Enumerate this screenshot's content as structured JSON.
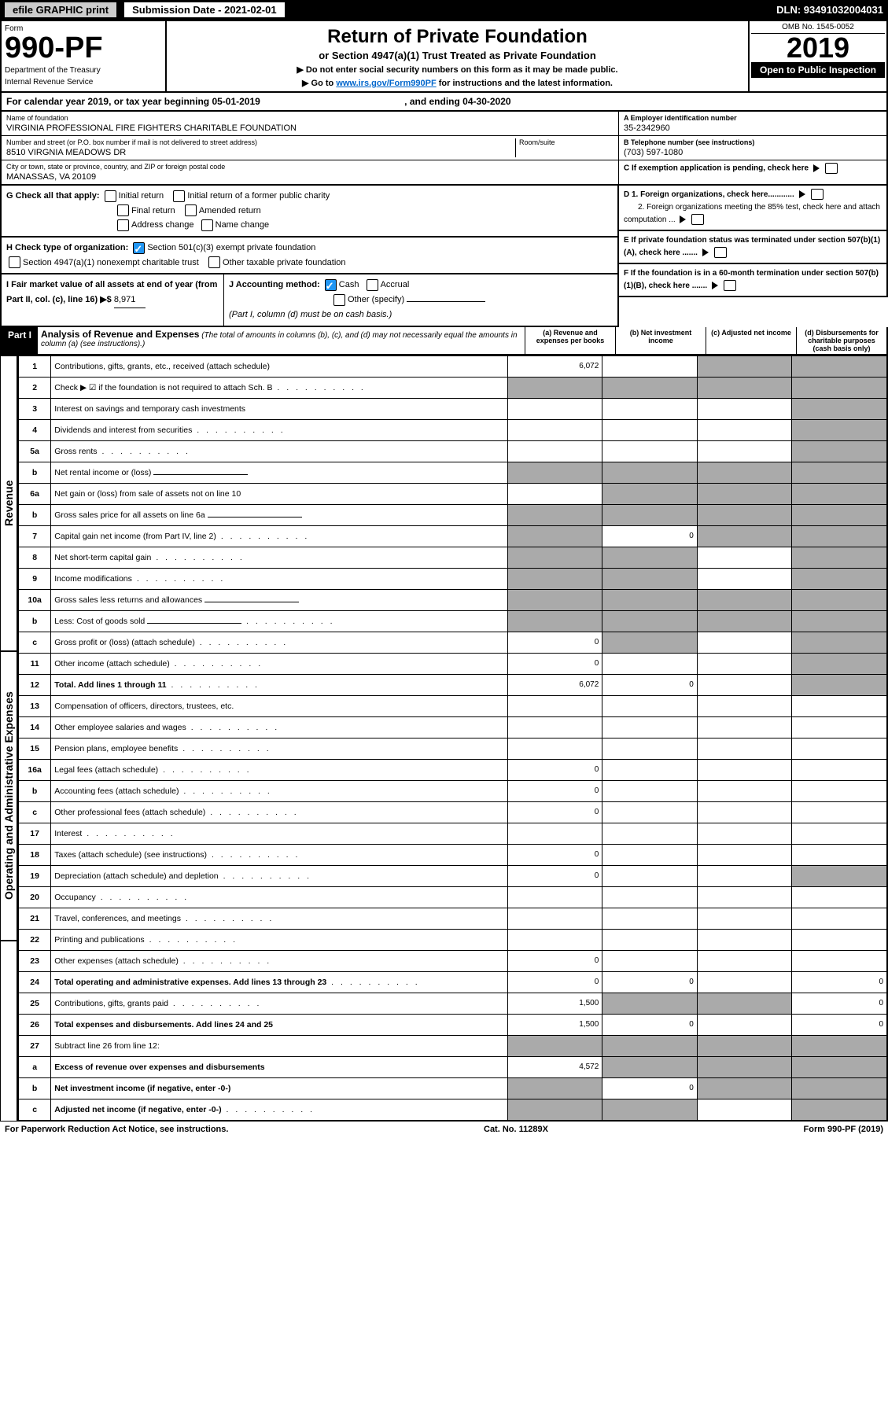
{
  "topbar": {
    "efile": "efile GRAPHIC print",
    "submission": "Submission Date - 2021-02-01",
    "dln": "DLN: 93491032004031"
  },
  "header": {
    "form_word": "Form",
    "form_no": "990-PF",
    "dept": "Department of the Treasury",
    "irs": "Internal Revenue Service",
    "title": "Return of Private Foundation",
    "subtitle": "or Section 4947(a)(1) Trust Treated as Private Foundation",
    "note1": "▶ Do not enter social security numbers on this form as it may be made public.",
    "note2": "▶ Go to ",
    "link": "www.irs.gov/Form990PF",
    "note3": " for instructions and the latest information.",
    "omb": "OMB No. 1545-0052",
    "year": "2019",
    "open": "Open to Public Inspection"
  },
  "calyear": {
    "text": "For calendar year 2019, or tax year beginning 05-01-2019",
    "mid": ", and ending 04-30-2020"
  },
  "foundation": {
    "name_label": "Name of foundation",
    "name": "VIRGINIA PROFESSIONAL FIRE FIGHTERS CHARITABLE FOUNDATION",
    "addr_label": "Number and street (or P.O. box number if mail is not delivered to street address)",
    "addr": "8510 VIRGNIA MEADOWS DR",
    "room": "Room/suite",
    "city_label": "City or town, state or province, country, and ZIP or foreign postal code",
    "city": "MANASSAS, VA  20109",
    "ein_label": "A Employer identification number",
    "ein": "35-2342960",
    "tel_label": "B Telephone number (see instructions)",
    "tel": "(703) 597-1080",
    "c": "C If exemption application is pending, check here",
    "d1": "D 1. Foreign organizations, check here............",
    "d2": "2. Foreign organizations meeting the 85% test, check here and attach computation ...",
    "e": "E  If private foundation status was terminated under section 507(b)(1)(A), check here .......",
    "f": "F  If the foundation is in a 60-month termination under section 507(b)(1)(B), check here ......."
  },
  "g": {
    "label": "G Check all that apply:",
    "opts": [
      "Initial return",
      "Initial return of a former public charity",
      "Final return",
      "Amended return",
      "Address change",
      "Name change"
    ]
  },
  "h": {
    "label": "H Check type of organization:",
    "opts": [
      "Section 501(c)(3) exempt private foundation",
      "Section 4947(a)(1) nonexempt charitable trust",
      "Other taxable private foundation"
    ]
  },
  "i": {
    "label": "I Fair market value of all assets at end of year (from Part II, col. (c), line 16) ▶$",
    "val": "8,971"
  },
  "j": {
    "label": "J Accounting method:",
    "opts": [
      "Cash",
      "Accrual"
    ],
    "other": "Other (specify)",
    "note": "(Part I, column (d) must be on cash basis.)"
  },
  "part1": {
    "label": "Part I",
    "title": "Analysis of Revenue and Expenses",
    "note": "(The total of amounts in columns (b), (c), and (d) may not necessarily equal the amounts in column (a) (see instructions).)",
    "cols": [
      "(a)   Revenue and expenses per books",
      "(b)  Net investment income",
      "(c)  Adjusted net income",
      "(d)  Disbursements for charitable purposes (cash basis only)"
    ]
  },
  "rows": [
    {
      "n": "1",
      "d": "Contributions, gifts, grants, etc., received (attach schedule)",
      "a": "6,072",
      "sh": [
        0,
        0,
        1,
        1
      ]
    },
    {
      "n": "2",
      "d": "Check ▶ ☑ if the foundation is not required to attach Sch. B",
      "dots": 1,
      "sh": [
        1,
        1,
        1,
        1
      ]
    },
    {
      "n": "3",
      "d": "Interest on savings and temporary cash investments",
      "sh": [
        0,
        0,
        0,
        1
      ]
    },
    {
      "n": "4",
      "d": "Dividends and interest from securities",
      "dots": 1,
      "sh": [
        0,
        0,
        0,
        1
      ]
    },
    {
      "n": "5a",
      "d": "Gross rents",
      "dots": 1,
      "sh": [
        0,
        0,
        0,
        1
      ]
    },
    {
      "n": "b",
      "d": "Net rental income or (loss)",
      "line": 1,
      "sh": [
        1,
        1,
        1,
        1
      ]
    },
    {
      "n": "6a",
      "d": "Net gain or (loss) from sale of assets not on line 10",
      "sh": [
        0,
        1,
        1,
        1
      ]
    },
    {
      "n": "b",
      "d": "Gross sales price for all assets on line 6a",
      "line": 1,
      "sh": [
        1,
        1,
        1,
        1
      ]
    },
    {
      "n": "7",
      "d": "Capital gain net income (from Part IV, line 2)",
      "dots": 1,
      "b": "0",
      "sh": [
        1,
        0,
        1,
        1
      ]
    },
    {
      "n": "8",
      "d": "Net short-term capital gain",
      "dots": 1,
      "sh": [
        1,
        1,
        0,
        1
      ]
    },
    {
      "n": "9",
      "d": "Income modifications",
      "dots": 1,
      "sh": [
        1,
        1,
        0,
        1
      ]
    },
    {
      "n": "10a",
      "d": "Gross sales less returns and allowances",
      "line": 1,
      "sh": [
        1,
        1,
        1,
        1
      ]
    },
    {
      "n": "b",
      "d": "Less: Cost of goods sold",
      "dots": 1,
      "line": 1,
      "sh": [
        1,
        1,
        1,
        1
      ]
    },
    {
      "n": "c",
      "d": "Gross profit or (loss) (attach schedule)",
      "dots": 1,
      "a": "0",
      "sh": [
        0,
        1,
        0,
        1
      ]
    },
    {
      "n": "11",
      "d": "Other income (attach schedule)",
      "dots": 1,
      "a": "0",
      "sh": [
        0,
        0,
        0,
        1
      ]
    },
    {
      "n": "12",
      "d": "Total. Add lines 1 through 11",
      "dots": 1,
      "bold": 1,
      "a": "6,072",
      "b": "0",
      "sh": [
        0,
        0,
        0,
        1
      ]
    },
    {
      "n": "13",
      "d": "Compensation of officers, directors, trustees, etc.",
      "sh": [
        0,
        0,
        0,
        0
      ]
    },
    {
      "n": "14",
      "d": "Other employee salaries and wages",
      "dots": 1,
      "sh": [
        0,
        0,
        0,
        0
      ]
    },
    {
      "n": "15",
      "d": "Pension plans, employee benefits",
      "dots": 1,
      "sh": [
        0,
        0,
        0,
        0
      ]
    },
    {
      "n": "16a",
      "d": "Legal fees (attach schedule)",
      "dots": 1,
      "a": "0",
      "sh": [
        0,
        0,
        0,
        0
      ]
    },
    {
      "n": "b",
      "d": "Accounting fees (attach schedule)",
      "dots": 1,
      "a": "0",
      "sh": [
        0,
        0,
        0,
        0
      ]
    },
    {
      "n": "c",
      "d": "Other professional fees (attach schedule)",
      "dots": 1,
      "a": "0",
      "sh": [
        0,
        0,
        0,
        0
      ]
    },
    {
      "n": "17",
      "d": "Interest",
      "dots": 1,
      "sh": [
        0,
        0,
        0,
        0
      ]
    },
    {
      "n": "18",
      "d": "Taxes (attach schedule) (see instructions)",
      "dots": 1,
      "a": "0",
      "sh": [
        0,
        0,
        0,
        0
      ]
    },
    {
      "n": "19",
      "d": "Depreciation (attach schedule) and depletion",
      "dots": 1,
      "a": "0",
      "sh": [
        0,
        0,
        0,
        1
      ]
    },
    {
      "n": "20",
      "d": "Occupancy",
      "dots": 1,
      "sh": [
        0,
        0,
        0,
        0
      ]
    },
    {
      "n": "21",
      "d": "Travel, conferences, and meetings",
      "dots": 1,
      "sh": [
        0,
        0,
        0,
        0
      ]
    },
    {
      "n": "22",
      "d": "Printing and publications",
      "dots": 1,
      "sh": [
        0,
        0,
        0,
        0
      ]
    },
    {
      "n": "23",
      "d": "Other expenses (attach schedule)",
      "dots": 1,
      "a": "0",
      "sh": [
        0,
        0,
        0,
        0
      ]
    },
    {
      "n": "24",
      "d": "Total operating and administrative expenses. Add lines 13 through 23",
      "dots": 1,
      "bold": 1,
      "a": "0",
      "b": "0",
      "dd": "0",
      "sh": [
        0,
        0,
        0,
        0
      ]
    },
    {
      "n": "25",
      "d": "Contributions, gifts, grants paid",
      "dots": 1,
      "a": "1,500",
      "dd": "0",
      "sh": [
        0,
        1,
        1,
        0
      ]
    },
    {
      "n": "26",
      "d": "Total expenses and disbursements. Add lines 24 and 25",
      "bold": 1,
      "a": "1,500",
      "b": "0",
      "dd": "0",
      "sh": [
        0,
        0,
        0,
        0
      ]
    },
    {
      "n": "27",
      "d": "Subtract line 26 from line 12:",
      "sh": [
        1,
        1,
        1,
        1
      ]
    },
    {
      "n": "a",
      "d": "Excess of revenue over expenses and disbursements",
      "bold": 1,
      "a": "4,572",
      "sh": [
        0,
        1,
        1,
        1
      ]
    },
    {
      "n": "b",
      "d": "Net investment income (if negative, enter -0-)",
      "bold": 1,
      "b": "0",
      "sh": [
        1,
        0,
        1,
        1
      ]
    },
    {
      "n": "c",
      "d": "Adjusted net income (if negative, enter -0-)",
      "dots": 1,
      "bold": 1,
      "sh": [
        1,
        1,
        0,
        1
      ]
    }
  ],
  "vlabels": {
    "rev": "Revenue",
    "exp": "Operating and Administrative Expenses"
  },
  "footer": {
    "left": "For Paperwork Reduction Act Notice, see instructions.",
    "mid": "Cat. No. 11289X",
    "right": "Form 990-PF (2019)"
  }
}
